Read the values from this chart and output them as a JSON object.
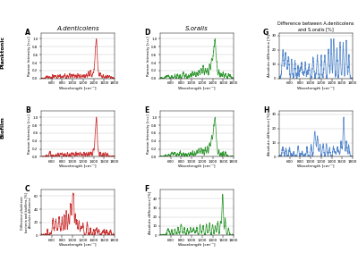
{
  "title_A": "A.denticolens",
  "title_D": "S.oralis",
  "title_G": "Difference between A.denticolens\nand S.oralis [%]",
  "panel_labels": [
    "A",
    "B",
    "C",
    "D",
    "E",
    "F",
    "G",
    "H"
  ],
  "ylabel_AB": "Raman Intensity [r.u.]",
  "ylabel_C": "Difference planktonic\nbacteria and biofilms [%]\nAbsolute difference",
  "ylabel_F": "Absolute difference [%]",
  "ylabel_GH": "Absolute difference [%]",
  "xlabel": "Wavelength [cm⁻¹]",
  "xmin": 400,
  "xmax": 1800,
  "xticks": [
    600,
    800,
    1000,
    1200,
    1400,
    1600,
    1800
  ],
  "color_red": "#cc3333",
  "color_red_fill": "#e89090",
  "color_green": "#339933",
  "color_blue": "#5588cc",
  "bg_color": "#ffffff",
  "grid_color": "#cccccc",
  "row_label_planktonic": "Planktonic",
  "row_label_biofilm": "Biofilm"
}
